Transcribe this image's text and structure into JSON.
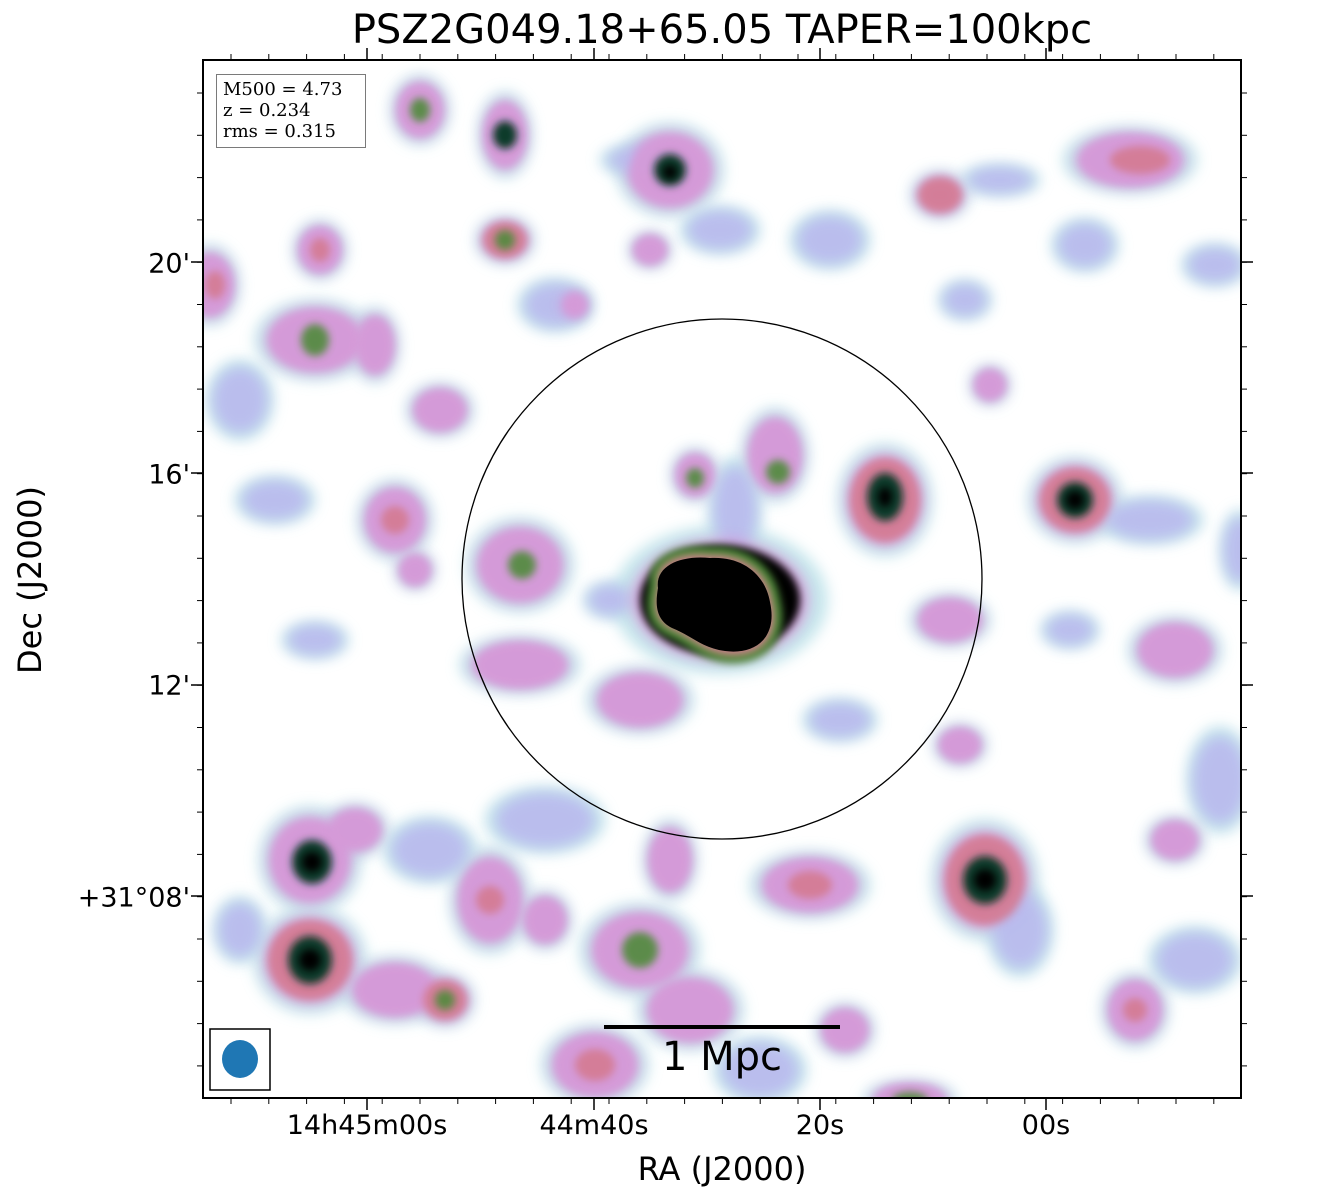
{
  "title": "PSZ2G049.18+65.05 TAPER=100kpc",
  "xlabel": "RA (J2000)",
  "ylabel": "Dec (J2000)",
  "x_ticks": [
    "14h45m00s",
    "44m40s",
    "20s",
    "00s"
  ],
  "y_ticks": [
    "20'",
    "16'",
    "12'",
    "+31°08'"
  ],
  "info": {
    "line1": "M500 = 4.73",
    "line2": "z = 0.234",
    "line3": "rms = 0.315"
  },
  "scalebar": {
    "label": "1 Mpc"
  },
  "beam": {
    "color": "#1f77b4"
  },
  "colormap": [
    "#ffffff",
    "#bfe3ea",
    "#b9b9ee",
    "#d59ad8",
    "#d47a92",
    "#4f8a3a",
    "#0e3a2a",
    "#000000"
  ]
}
